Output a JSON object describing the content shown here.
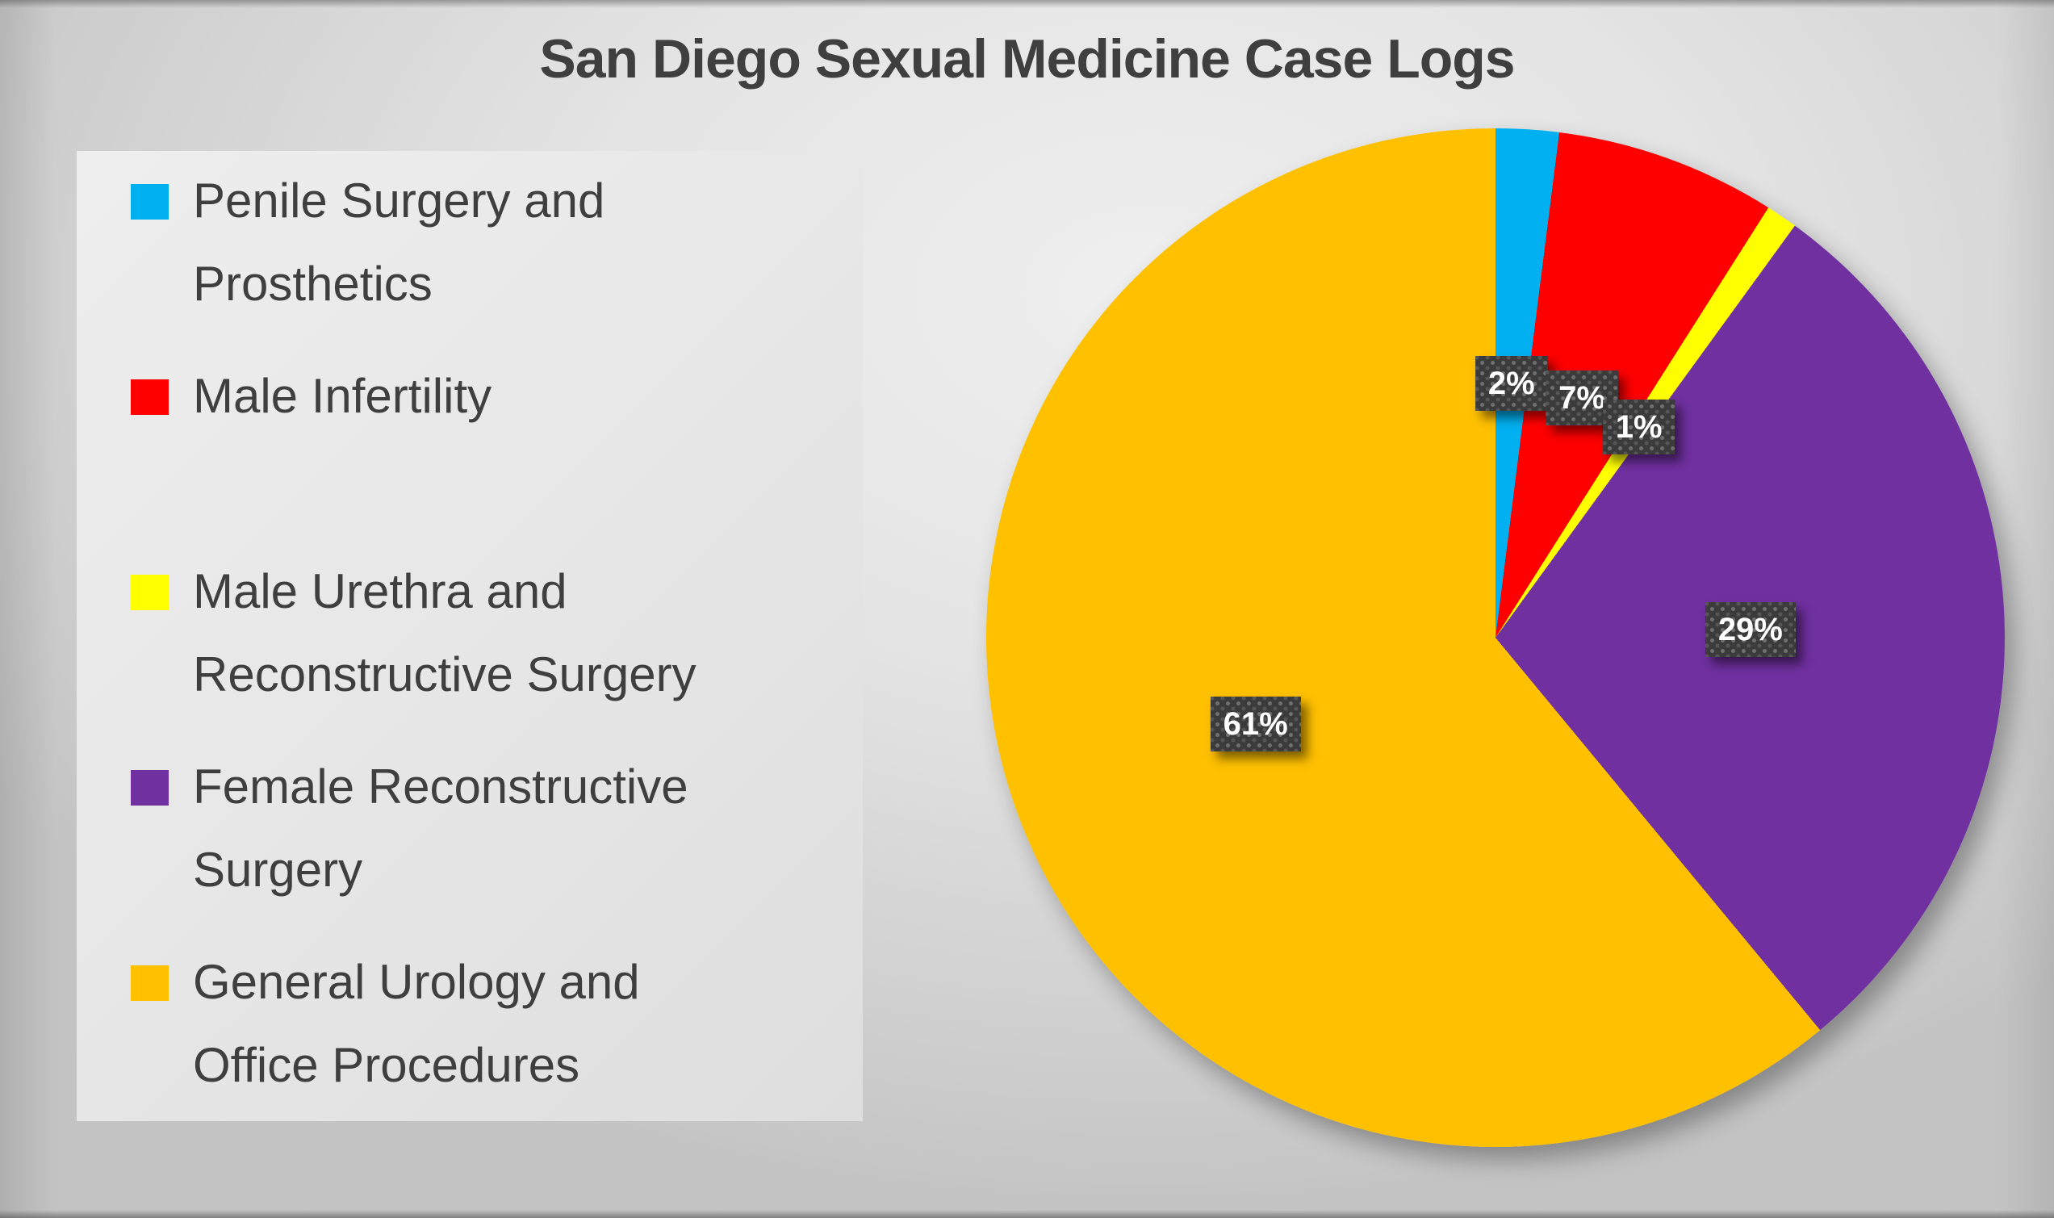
{
  "chart_data": {
    "type": "pie",
    "title": "San Diego Sexual Medicine Case Logs",
    "categories": [
      "Penile Surgery and Prosthetics",
      "Male Infertility",
      "Male Urethra and Reconstructive Surgery",
      "Female Reconstructive Surgery",
      "General Urology and Office Procedures"
    ],
    "values": [
      2,
      7,
      1,
      29,
      61
    ],
    "unit": "%",
    "data_labels": [
      "2%",
      "7%",
      "1%",
      "29%",
      "61%"
    ],
    "colors": [
      "#00B0F0",
      "#FF0000",
      "#FFFF00",
      "#7030A0",
      "#FFC000"
    ],
    "start_angle_deg": 0,
    "direction": "clockwise",
    "legend_position": "left",
    "label_box": {
      "background": "#3B3B3B",
      "dot_color": "#555555",
      "text_color": "#FFFFFF"
    }
  },
  "legend": {
    "items": [
      {
        "label": "Penile Surgery and\nProsthetics",
        "color": "#00B0F0",
        "gap_after": false
      },
      {
        "label": "Male Infertility",
        "color": "#FF0000",
        "gap_after": true
      },
      {
        "label": "Male Urethra and\nReconstructive Surgery",
        "color": "#FFFF00",
        "gap_after": false
      },
      {
        "label": "Female Reconstructive\nSurgery",
        "color": "#7030A0",
        "gap_after": false
      },
      {
        "label": "General Urology and\nOffice Procedures",
        "color": "#FFC000",
        "gap_after": false
      }
    ]
  }
}
